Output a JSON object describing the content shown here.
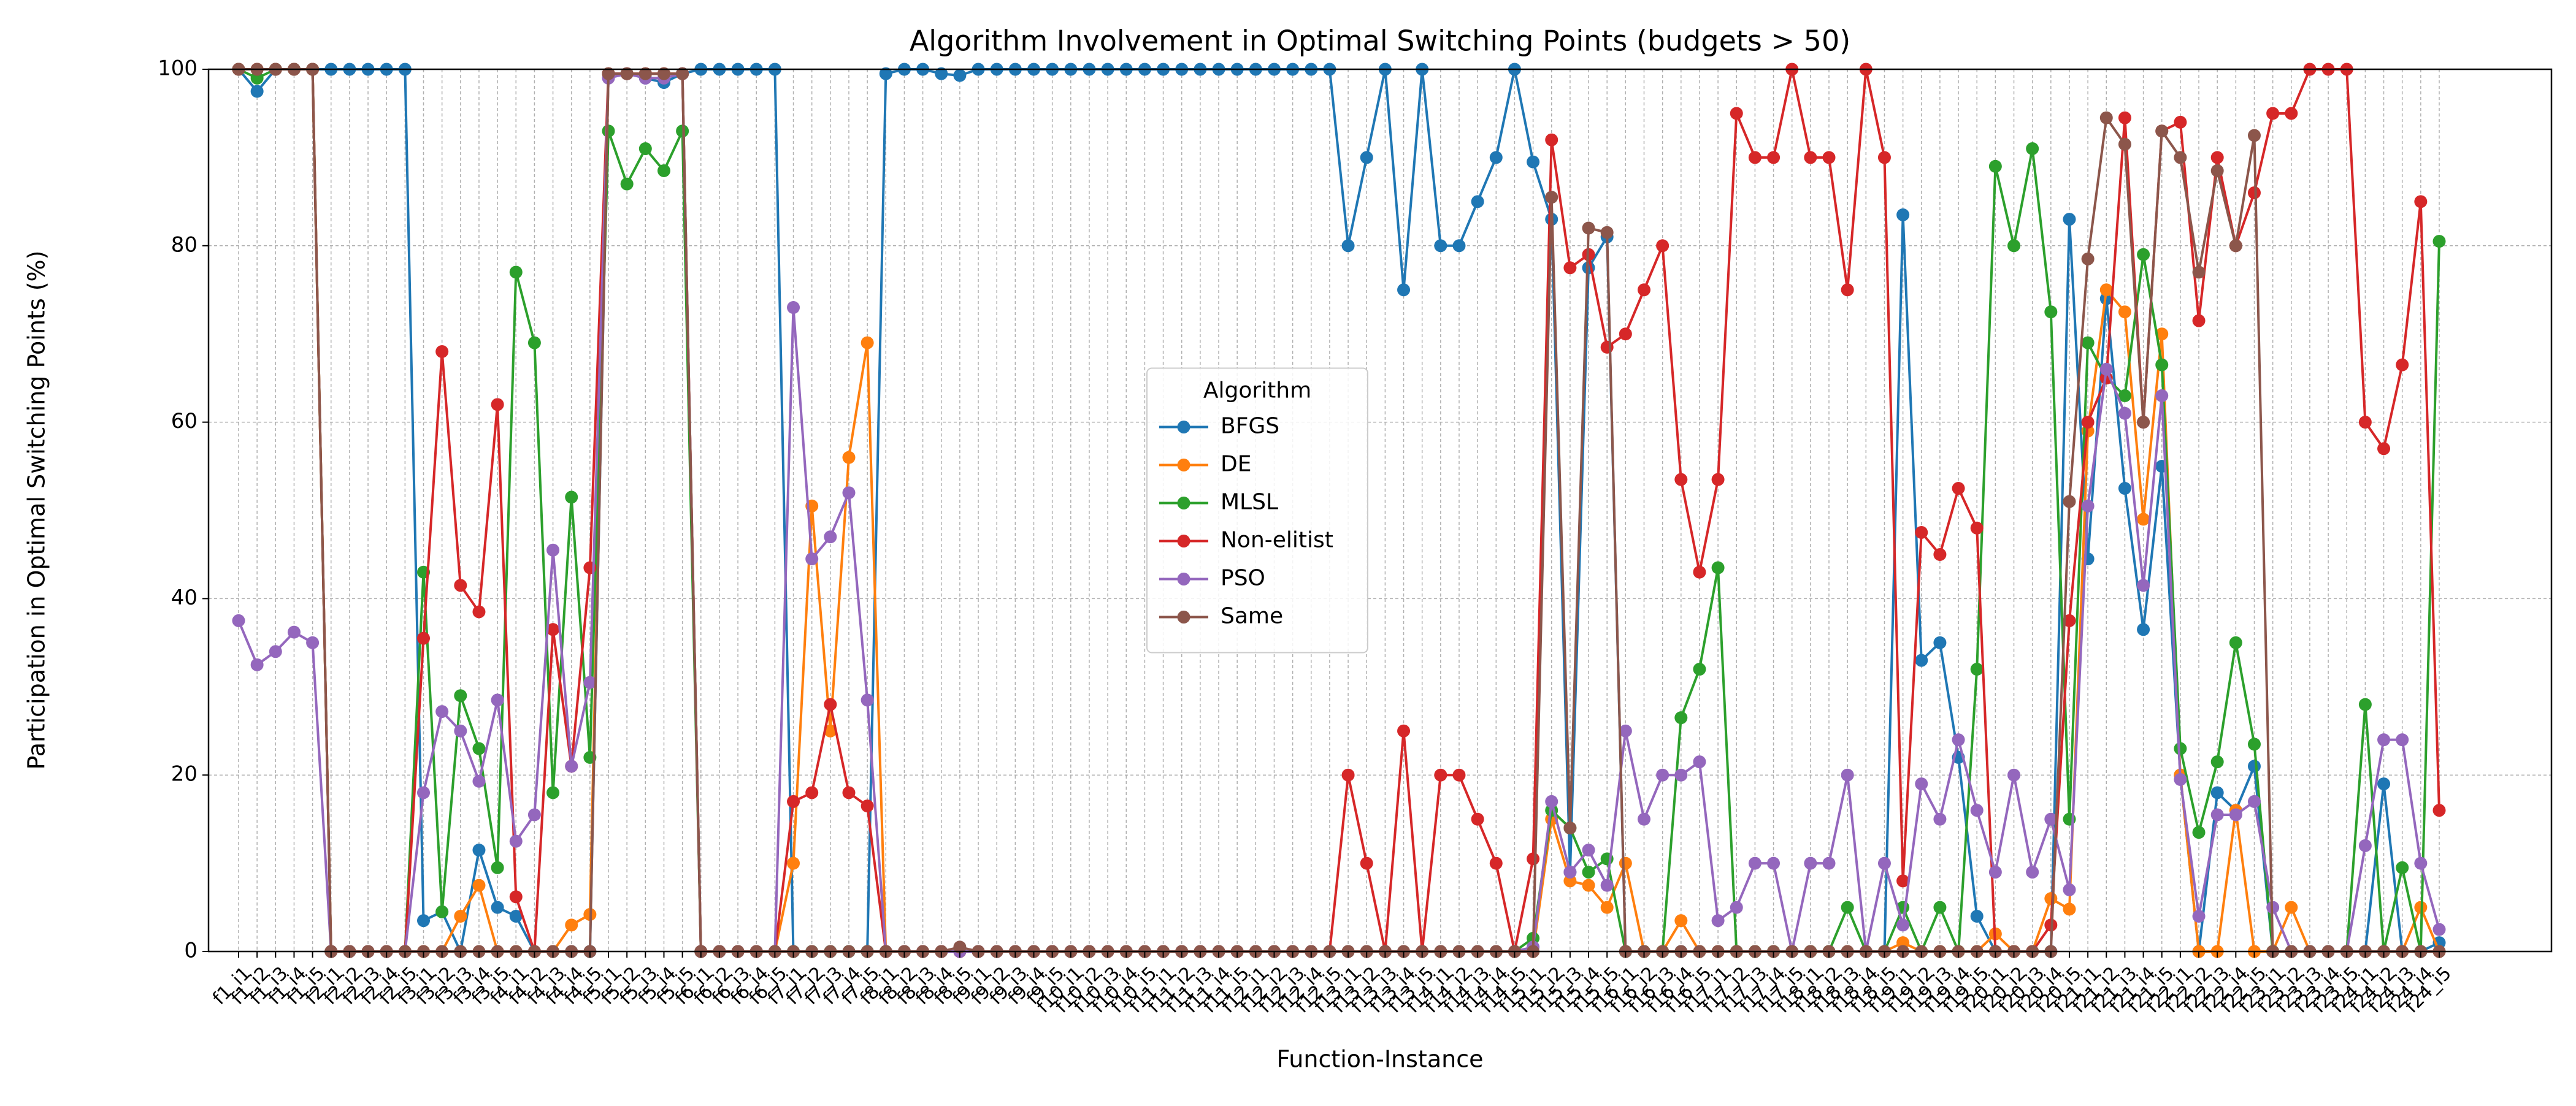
{
  "chart_data": {
    "type": "line",
    "title": "Algorithm Involvement in Optimal Switching Points (budgets > 50)",
    "x_label": "Function-Instance",
    "y_label": "Participation in Optimal Switching Points (%)",
    "legend_title": "Algorithm",
    "legend_position": "center",
    "grid": true,
    "ylim": [
      0,
      100
    ],
    "yticks": [
      0,
      20,
      40,
      60,
      80,
      100
    ],
    "categories": [
      "f1_i1",
      "f1_i2",
      "f1_i3",
      "f1_i4",
      "f1_i5",
      "f2_i1",
      "f2_i2",
      "f2_i3",
      "f2_i4",
      "f2_i5",
      "f3_i1",
      "f3_i2",
      "f3_i3",
      "f3_i4",
      "f3_i5",
      "f4_i1",
      "f4_i2",
      "f4_i3",
      "f4_i4",
      "f4_i5",
      "f5_i1",
      "f5_i2",
      "f5_i3",
      "f5_i4",
      "f5_i5",
      "f6_i1",
      "f6_i2",
      "f6_i3",
      "f6_i4",
      "f6_i5",
      "f7_i1",
      "f7_i2",
      "f7_i3",
      "f7_i4",
      "f7_i5",
      "f8_i1",
      "f8_i2",
      "f8_i3",
      "f8_i4",
      "f8_i5",
      "f9_i1",
      "f9_i2",
      "f9_i3",
      "f9_i4",
      "f9_i5",
      "f10_i1",
      "f10_i2",
      "f10_i3",
      "f10_i4",
      "f10_i5",
      "f11_i1",
      "f11_i2",
      "f11_i3",
      "f11_i4",
      "f11_i5",
      "f12_i1",
      "f12_i2",
      "f12_i3",
      "f12_i4",
      "f12_i5",
      "f13_i1",
      "f13_i2",
      "f13_i3",
      "f13_i4",
      "f13_i5",
      "f14_i1",
      "f14_i2",
      "f14_i3",
      "f14_i4",
      "f14_i5",
      "f15_i1",
      "f15_i2",
      "f15_i3",
      "f15_i4",
      "f15_i5",
      "f16_i1",
      "f16_i2",
      "f16_i3",
      "f16_i4",
      "f16_i5",
      "f17_i1",
      "f17_i2",
      "f17_i3",
      "f17_i4",
      "f17_i5",
      "f18_i1",
      "f18_i2",
      "f18_i3",
      "f18_i4",
      "f18_i5",
      "f19_i1",
      "f19_i2",
      "f19_i3",
      "f19_i4",
      "f19_i5",
      "f20_i1",
      "f20_i2",
      "f20_i3",
      "f20_i4",
      "f20_i5",
      "f21_i1",
      "f21_i2",
      "f21_i3",
      "f21_i4",
      "f21_i5",
      "f22_i1",
      "f22_i2",
      "f22_i3",
      "f22_i4",
      "f22_i5",
      "f23_i1",
      "f23_i2",
      "f23_i3",
      "f23_i4",
      "f23_i5",
      "f24_i1",
      "f24_i2",
      "f24_i3",
      "f24_i4",
      "f24_i5"
    ],
    "series": [
      {
        "name": "BFGS",
        "color": "#1f77b4",
        "values": [
          100,
          97.5,
          100,
          100,
          100,
          100,
          100,
          100,
          100,
          100,
          3.5,
          4.5,
          0,
          11.5,
          5,
          4,
          0,
          0,
          0,
          0,
          99.5,
          99.5,
          99,
          98.5,
          99.5,
          100,
          100,
          100,
          100,
          100,
          0,
          0,
          0,
          0,
          0,
          99.5,
          100,
          100,
          99.5,
          99.3,
          100,
          100,
          100,
          100,
          100,
          100,
          100,
          100,
          100,
          100,
          100,
          100,
          100,
          100,
          100,
          100,
          100,
          100,
          100,
          100,
          80,
          90,
          100,
          75,
          100,
          80,
          80,
          85,
          90,
          100,
          89.5,
          83,
          9,
          77.5,
          81,
          0,
          0,
          0,
          0,
          0,
          0,
          0,
          0,
          0,
          0,
          0,
          0,
          0,
          0,
          0,
          83.5,
          33,
          35,
          22,
          4,
          0,
          0,
          0,
          0,
          83,
          44.5,
          74,
          52.5,
          36.5,
          55,
          20,
          0,
          18,
          16,
          21,
          0,
          0,
          0,
          0,
          0,
          0,
          19,
          0,
          0,
          1
        ]
      },
      {
        "name": "DE",
        "color": "#ff7f0e",
        "values": [
          100,
          100,
          100,
          100,
          100,
          0,
          0,
          0,
          0,
          0,
          0,
          0,
          4,
          7.5,
          0,
          0,
          0,
          0,
          3,
          4.2,
          99.5,
          99.5,
          99.5,
          99.5,
          99.5,
          0,
          0,
          0,
          0,
          0,
          10,
          50.5,
          25,
          56,
          69,
          0,
          0,
          0,
          0,
          0,
          0,
          0,
          0,
          0,
          0,
          0,
          0,
          0,
          0,
          0,
          0,
          0,
          0,
          0,
          0,
          0,
          0,
          0,
          0,
          0,
          0,
          0,
          0,
          0,
          0,
          0,
          0,
          0,
          0,
          0,
          0,
          15,
          8,
          7.5,
          5,
          10,
          0,
          0,
          3.5,
          0,
          0,
          0,
          0,
          0,
          0,
          0,
          0,
          0,
          0,
          0,
          1,
          0,
          0,
          0,
          0,
          2,
          0,
          0,
          6,
          4.8,
          59,
          75,
          72.5,
          49,
          70,
          20,
          0,
          0,
          16,
          0,
          0,
          5,
          0,
          0,
          0,
          0,
          0,
          0,
          5,
          0
        ]
      },
      {
        "name": "MLSL",
        "color": "#2ca02c",
        "values": [
          100,
          99,
          100,
          100,
          100,
          0,
          0,
          0,
          0,
          0,
          43,
          4.5,
          29,
          23,
          9.5,
          77,
          69,
          18,
          51.5,
          22,
          93,
          87,
          91,
          88.5,
          93,
          0,
          0,
          0,
          0,
          0,
          0,
          0,
          0,
          0,
          0,
          0,
          0,
          0,
          0,
          0,
          0,
          0,
          0,
          0,
          0,
          0,
          0,
          0,
          0,
          0,
          0,
          0,
          0,
          0,
          0,
          0,
          0,
          0,
          0,
          0,
          0,
          0,
          0,
          0,
          0,
          0,
          0,
          0,
          0,
          0,
          1.5,
          16,
          14,
          9,
          10.5,
          0,
          0,
          0,
          26.5,
          32,
          43.5,
          0,
          0,
          0,
          0,
          0,
          0,
          5,
          0,
          0,
          5,
          0,
          5,
          0,
          32,
          89,
          80,
          91,
          72.5,
          15,
          69,
          65,
          63,
          79,
          66.5,
          23,
          13.5,
          21.5,
          35,
          23.5,
          0,
          0,
          0,
          0,
          0,
          28,
          0,
          9.5,
          0,
          80.5
        ]
      },
      {
        "name": "Non-elitist",
        "color": "#d62728",
        "values": [
          100,
          100,
          100,
          100,
          100,
          0,
          0,
          0,
          0,
          0,
          35.5,
          68,
          41.5,
          38.5,
          62,
          6.2,
          0,
          36.5,
          21,
          43.5,
          99.5,
          99.5,
          99.5,
          99.5,
          99.5,
          0,
          0,
          0,
          0,
          0,
          17,
          18,
          28,
          18,
          16.5,
          0,
          0,
          0,
          0,
          0,
          0,
          0,
          0,
          0,
          0,
          0,
          0,
          0,
          0,
          0,
          0,
          0,
          0,
          0,
          0,
          0,
          0,
          0,
          0,
          0,
          20,
          10,
          0,
          25,
          0,
          20,
          20,
          15,
          10,
          0,
          10.5,
          92,
          77.5,
          79,
          68.5,
          70,
          75,
          80,
          53.5,
          43,
          53.5,
          95,
          90,
          90,
          100,
          90,
          90,
          75,
          100,
          90,
          8,
          47.5,
          45,
          52.5,
          48,
          0,
          0,
          0,
          3,
          37.5,
          60,
          65,
          94.5,
          60,
          93,
          94,
          71.5,
          90,
          80,
          86,
          95,
          95,
          100,
          100,
          100,
          60,
          57,
          66.5,
          85,
          16
        ]
      },
      {
        "name": "PSO",
        "color": "#9467bd",
        "values": [
          37.5,
          32.5,
          34,
          36.2,
          35,
          0,
          0,
          0,
          0,
          0,
          18,
          27.2,
          25,
          19.3,
          28.5,
          12.5,
          15.5,
          45.5,
          21,
          30.5,
          99,
          99.5,
          99,
          99,
          99.5,
          0,
          0,
          0,
          0,
          0,
          73,
          44.5,
          47,
          52,
          28.5,
          0,
          0,
          0,
          0,
          0,
          0,
          0,
          0,
          0,
          0,
          0,
          0,
          0,
          0,
          0,
          0,
          0,
          0,
          0,
          0,
          0,
          0,
          0,
          0,
          0,
          0,
          0,
          0,
          0,
          0,
          0,
          0,
          0,
          0,
          0,
          0.5,
          17,
          9,
          11.5,
          7.5,
          25,
          15,
          20,
          20,
          21.5,
          3.5,
          5,
          10,
          10,
          0,
          10,
          10,
          20,
          0,
          10,
          3,
          19,
          15,
          24,
          16,
          9,
          20,
          9,
          15,
          7,
          50.5,
          66,
          61,
          41.5,
          63,
          19.5,
          4,
          15.5,
          15.5,
          17,
          5,
          0,
          0,
          0,
          0,
          12,
          24,
          24,
          10,
          2.5
        ]
      },
      {
        "name": "Same",
        "color": "#8c564b",
        "values": [
          100,
          100,
          100,
          100,
          100,
          0,
          0,
          0,
          0,
          0,
          0,
          0,
          0,
          0,
          0,
          0,
          0,
          0,
          0,
          0,
          99.5,
          99.5,
          99.5,
          99.5,
          99.5,
          0,
          0,
          0,
          0,
          0,
          0,
          0,
          0,
          0,
          0,
          0,
          0,
          0,
          0,
          0.5,
          0,
          0,
          0,
          0,
          0,
          0,
          0,
          0,
          0,
          0,
          0,
          0,
          0,
          0,
          0,
          0,
          0,
          0,
          0,
          0,
          0,
          0,
          0,
          0,
          0,
          0,
          0,
          0,
          0,
          0,
          0,
          85.5,
          14,
          82,
          81.5,
          0,
          0,
          0,
          0,
          0,
          0,
          0,
          0,
          0,
          0,
          0,
          0,
          0,
          0,
          0,
          0,
          0,
          0,
          0,
          0,
          0,
          0,
          0,
          0,
          51,
          78.5,
          94.5,
          91.5,
          60,
          93,
          90,
          77,
          88.5,
          80,
          92.5,
          0,
          0,
          0,
          0,
          0,
          0,
          0,
          0,
          0,
          0
        ]
      }
    ]
  }
}
